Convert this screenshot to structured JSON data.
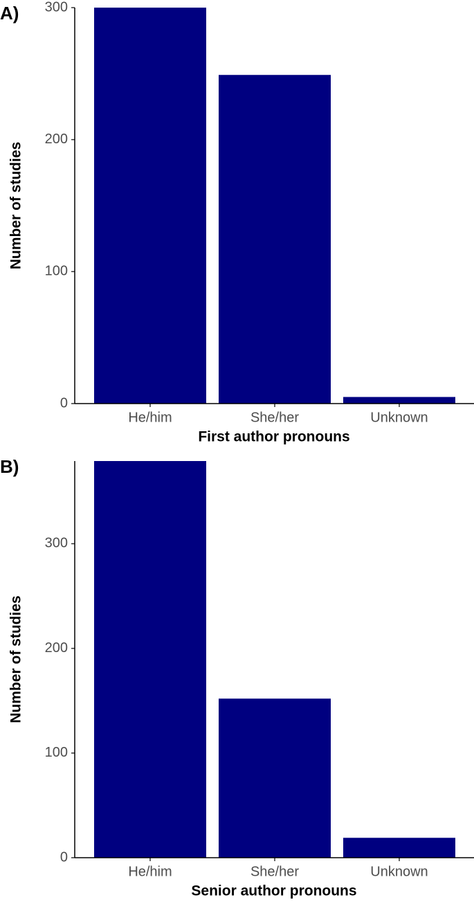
{
  "chart_data": [
    {
      "type": "bar",
      "panel_label": "A)",
      "x_label": "First author pronouns",
      "y_label": "Number of studies",
      "categories": [
        "He/him",
        "She/her",
        "Unknown"
      ],
      "values": [
        300,
        249,
        5
      ],
      "color": "#000080",
      "ylim": [
        0,
        300
      ],
      "yticks": [
        0,
        100,
        200,
        300
      ]
    },
    {
      "type": "bar",
      "panel_label": "B)",
      "x_label": "Senior author pronouns",
      "y_label": "Number of studies",
      "categories": [
        "He/him",
        "She/her",
        "Unknown"
      ],
      "values": [
        379,
        152,
        19
      ],
      "color": "#000080",
      "ylim": [
        0,
        379
      ],
      "yticks": [
        0,
        100,
        200,
        300
      ]
    }
  ]
}
